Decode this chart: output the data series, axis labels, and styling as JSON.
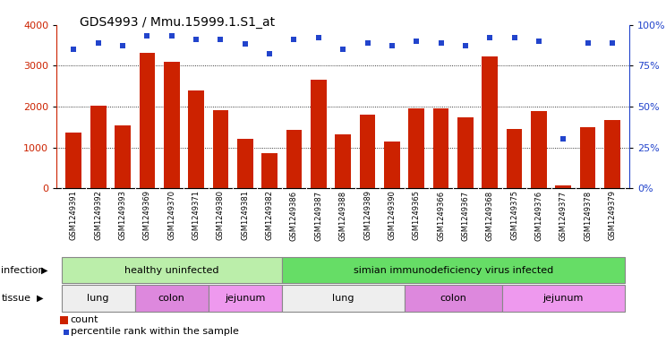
{
  "title": "GDS4993 / Mmu.15999.1.S1_at",
  "samples": [
    "GSM1249391",
    "GSM1249392",
    "GSM1249393",
    "GSM1249369",
    "GSM1249370",
    "GSM1249371",
    "GSM1249380",
    "GSM1249381",
    "GSM1249382",
    "GSM1249386",
    "GSM1249387",
    "GSM1249388",
    "GSM1249389",
    "GSM1249390",
    "GSM1249365",
    "GSM1249366",
    "GSM1249367",
    "GSM1249368",
    "GSM1249375",
    "GSM1249376",
    "GSM1249377",
    "GSM1249378",
    "GSM1249379"
  ],
  "counts": [
    1370,
    2020,
    1530,
    3300,
    3100,
    2400,
    1920,
    1220,
    870,
    1430,
    2650,
    1310,
    1810,
    1140,
    1960,
    1960,
    1740,
    3230,
    1440,
    1890,
    80,
    1490,
    1680
  ],
  "percentile_ranks": [
    85,
    89,
    87,
    93,
    93,
    91,
    91,
    88,
    82,
    91,
    92,
    85,
    89,
    87,
    90,
    89,
    87,
    92,
    92,
    90,
    30,
    89,
    89
  ],
  "bar_color": "#cc2200",
  "dot_color": "#2244cc",
  "infection_groups": [
    {
      "label": "healthy uninfected",
      "start": 0,
      "end": 9,
      "color": "#bbeeaa"
    },
    {
      "label": "simian immunodeficiency virus infected",
      "start": 9,
      "end": 23,
      "color": "#66dd66"
    }
  ],
  "tissue_groups": [
    {
      "label": "lung",
      "start": 0,
      "end": 3,
      "color": "#eeeeee"
    },
    {
      "label": "colon",
      "start": 3,
      "end": 6,
      "color": "#dd88dd"
    },
    {
      "label": "jejunum",
      "start": 6,
      "end": 9,
      "color": "#ee99ee"
    },
    {
      "label": "lung",
      "start": 9,
      "end": 14,
      "color": "#eeeeee"
    },
    {
      "label": "colon",
      "start": 14,
      "end": 18,
      "color": "#dd88dd"
    },
    {
      "label": "jejunum",
      "start": 18,
      "end": 23,
      "color": "#ee99ee"
    }
  ],
  "xtick_bg": "#dddddd",
  "ylim_left": [
    0,
    4000
  ],
  "ylim_right": [
    0,
    100
  ],
  "yticks_left": [
    0,
    1000,
    2000,
    3000,
    4000
  ],
  "yticks_right": [
    0,
    25,
    50,
    75,
    100
  ],
  "bg_color": "#ffffff"
}
